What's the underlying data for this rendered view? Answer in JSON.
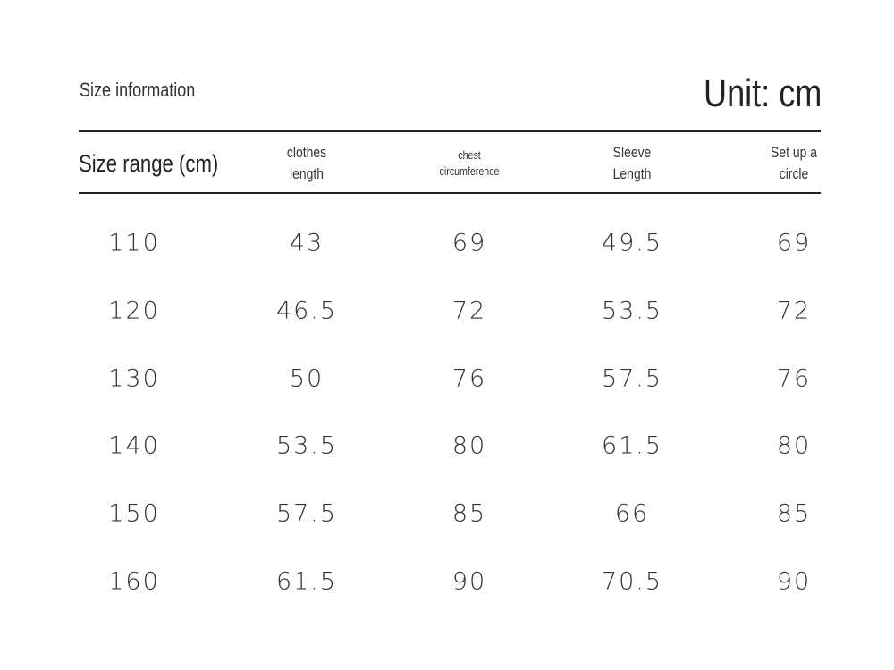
{
  "header": {
    "title": "Size information",
    "unit": "Unit: cm"
  },
  "table": {
    "headers": [
      [
        "Size range (cm)"
      ],
      [
        "clothes",
        "length"
      ],
      [
        "chest",
        "circumference"
      ],
      [
        "Sleeve",
        "Length"
      ],
      [
        "Set up a",
        "circle"
      ]
    ],
    "rows": [
      [
        110,
        43,
        69,
        49.5,
        69
      ],
      [
        120,
        46.5,
        72,
        53.5,
        72
      ],
      [
        130,
        50,
        76,
        57.5,
        76
      ],
      [
        140,
        53.5,
        80,
        61.5,
        80
      ],
      [
        150,
        57.5,
        85,
        66,
        85
      ],
      [
        160,
        61.5,
        90,
        70.5,
        90
      ]
    ]
  }
}
